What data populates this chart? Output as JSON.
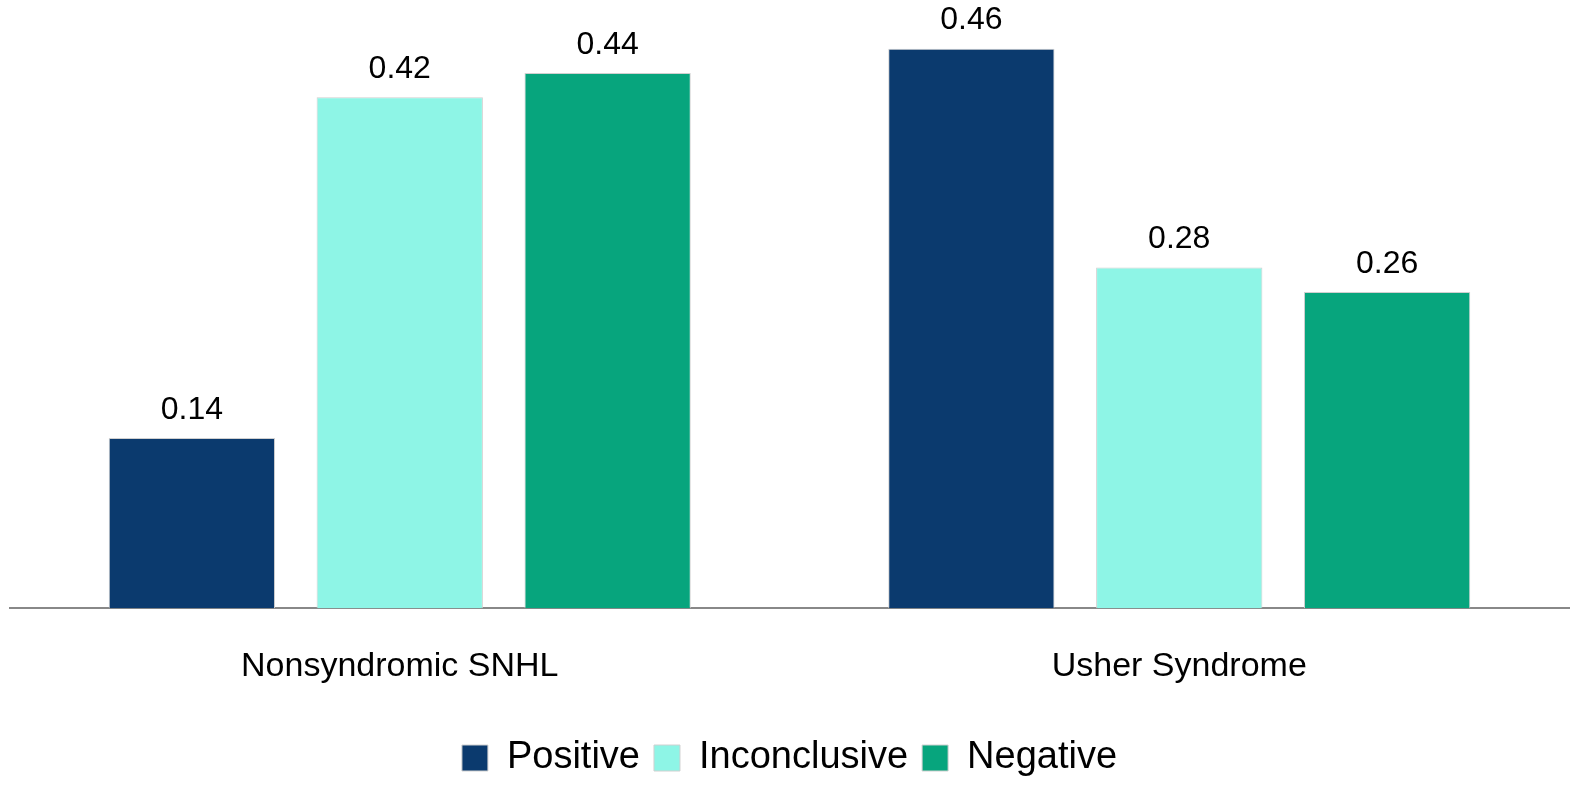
{
  "chart_data": {
    "type": "bar",
    "categories": [
      "Nonsyndromic SNHL",
      "Usher Syndrome"
    ],
    "series": [
      {
        "name": "Positive",
        "color": "#0b3a6e",
        "values": [
          0.14,
          0.46
        ]
      },
      {
        "name": "Inconclusive",
        "color": "#8ef5e6",
        "values": [
          0.42,
          0.28
        ]
      },
      {
        "name": "Negative",
        "color": "#07a57d",
        "values": [
          0.44,
          0.26
        ]
      }
    ],
    "tick_labels": "x",
    "data_labels": true,
    "grid": false,
    "legend": "bottom"
  }
}
